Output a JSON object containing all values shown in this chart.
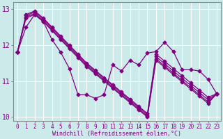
{
  "xlabel": "Windchill (Refroidissement éolien,°C)",
  "x": [
    0,
    1,
    2,
    3,
    4,
    5,
    6,
    7,
    8,
    9,
    10,
    11,
    12,
    13,
    14,
    15,
    16,
    17,
    18,
    19,
    20,
    21,
    22,
    23
  ],
  "lines": [
    [
      11.8,
      12.5,
      12.85,
      12.65,
      12.15,
      11.8,
      11.35,
      10.62,
      10.62,
      10.52,
      10.62,
      11.45,
      11.28,
      11.58,
      11.45,
      11.78,
      11.82,
      12.08,
      11.82,
      11.32,
      11.32,
      11.28,
      11.05,
      10.65
    ],
    [
      11.8,
      12.85,
      12.95,
      12.75,
      12.5,
      12.25,
      12.0,
      11.75,
      11.5,
      11.3,
      11.1,
      10.9,
      10.7,
      10.5,
      10.3,
      10.1,
      11.75,
      11.55,
      11.35,
      11.15,
      10.95,
      10.75,
      10.55,
      10.65
    ],
    [
      11.8,
      12.82,
      12.92,
      12.72,
      12.47,
      12.22,
      11.97,
      11.72,
      11.47,
      11.27,
      11.07,
      10.87,
      10.67,
      10.47,
      10.27,
      10.07,
      11.68,
      11.48,
      11.28,
      11.08,
      10.88,
      10.68,
      10.48,
      10.65
    ],
    [
      11.8,
      12.78,
      12.88,
      12.68,
      12.43,
      12.18,
      11.93,
      11.68,
      11.43,
      11.23,
      11.03,
      10.83,
      10.63,
      10.43,
      10.23,
      10.03,
      11.62,
      11.42,
      11.22,
      11.02,
      10.82,
      10.62,
      10.42,
      10.65
    ],
    [
      11.8,
      12.75,
      12.85,
      12.65,
      12.4,
      12.15,
      11.9,
      11.65,
      11.4,
      11.2,
      11.0,
      10.8,
      10.6,
      10.4,
      10.2,
      10.0,
      11.58,
      11.38,
      11.18,
      10.98,
      10.78,
      10.58,
      10.38,
      10.65
    ]
  ],
  "line_color": "#800080",
  "marker": "D",
  "marker_size": 2.5,
  "ylim": [
    9.9,
    13.2
  ],
  "yticks": [
    10,
    11,
    12,
    13
  ],
  "bg_color": "#cceaea",
  "grid_color": "#ffffff",
  "axes_color": "#888888",
  "font_color": "#800080",
  "linewidth": 0.9
}
